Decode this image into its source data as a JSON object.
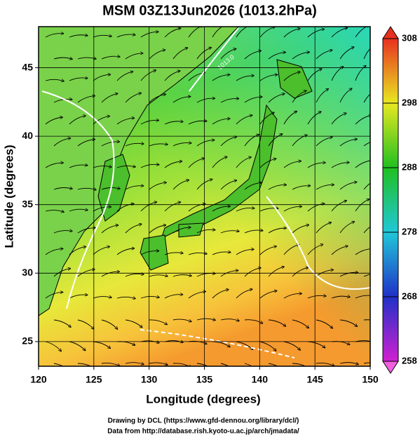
{
  "title": "MSM 03Z13Jun2026 (1013.2hPa)",
  "x_axis": {
    "label": "Longitude (degrees)",
    "lim": [
      120,
      150
    ],
    "ticks": [
      120,
      125,
      130,
      135,
      140,
      145,
      150
    ]
  },
  "y_axis": {
    "label": "Latitude  (degrees)",
    "lim": [
      23.2,
      48
    ],
    "ticks": [
      25,
      30,
      35,
      40,
      45
    ]
  },
  "colorbar": {
    "lim": [
      258,
      308
    ],
    "ticks": [
      258,
      268,
      278,
      288,
      298,
      308
    ]
  },
  "contour_label": "1013.0",
  "credits": [
    "Drawing by DCL (https://www.gfd-dennou.org/library/dcl/)",
    "Data from http://database.rish.kyoto-u.ac.jp/arch/jmadata/"
  ]
}
